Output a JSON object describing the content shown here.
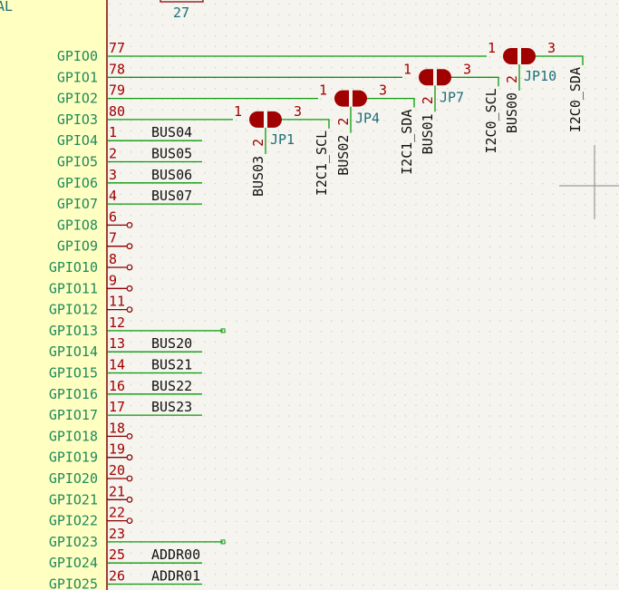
{
  "top": {
    "clip_text": "AL",
    "symbol_value": "27"
  },
  "pins": [
    {
      "name": "GPIO0",
      "number": "77"
    },
    {
      "name": "GPIO1",
      "number": "78"
    },
    {
      "name": "GPIO2",
      "number": "79"
    },
    {
      "name": "GPIO3",
      "number": "80"
    },
    {
      "name": "GPIO4",
      "number": "1",
      "label": "BUS04"
    },
    {
      "name": "GPIO5",
      "number": "2",
      "label": "BUS05"
    },
    {
      "name": "GPIO6",
      "number": "3",
      "label": "BUS06"
    },
    {
      "name": "GPIO7",
      "number": "4",
      "label": "BUS07"
    },
    {
      "name": "GPIO8",
      "number": "6"
    },
    {
      "name": "GPIO9",
      "number": "7"
    },
    {
      "name": "GPIO10",
      "number": "8"
    },
    {
      "name": "GPIO11",
      "number": "9"
    },
    {
      "name": "GPIO12",
      "number": "11"
    },
    {
      "name": "GPIO13",
      "number": "12"
    },
    {
      "name": "GPIO14",
      "number": "13",
      "label": "BUS20"
    },
    {
      "name": "GPIO15",
      "number": "14",
      "label": "BUS21"
    },
    {
      "name": "GPIO16",
      "number": "16",
      "label": "BUS22"
    },
    {
      "name": "GPIO17",
      "number": "17",
      "label": "BUS23"
    },
    {
      "name": "GPIO18",
      "number": "18"
    },
    {
      "name": "GPIO19",
      "number": "19"
    },
    {
      "name": "GPIO20",
      "number": "20"
    },
    {
      "name": "GPIO21",
      "number": "21"
    },
    {
      "name": "GPIO22",
      "number": "22"
    },
    {
      "name": "GPIO23",
      "number": "23"
    },
    {
      "name": "GPIO24",
      "number": "25",
      "label": "ADDR00"
    },
    {
      "name": "GPIO25",
      "number": "26",
      "label": "ADDR01"
    }
  ],
  "jumpers": [
    {
      "ref": "JP10",
      "pin1": "1",
      "pin2": "2",
      "pin3": "3",
      "center_net": "BUS00",
      "side_net": "I2C0_SDA"
    },
    {
      "ref": "JP7",
      "pin1": "1",
      "pin2": "2",
      "pin3": "3",
      "center_net": "BUS01",
      "side_net": "I2C0_SCL"
    },
    {
      "ref": "JP4",
      "pin1": "1",
      "pin2": "2",
      "pin3": "3",
      "center_net": "BUS02",
      "side_net": "I2C1_SDA"
    },
    {
      "ref": "JP1",
      "pin1": "1",
      "pin2": "2",
      "pin3": "3",
      "center_net": "BUS03",
      "side_net": "I2C1_SCL"
    }
  ]
}
